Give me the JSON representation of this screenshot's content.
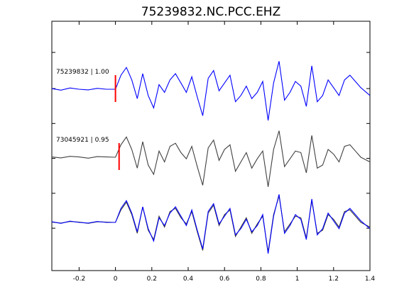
{
  "chart_data": {
    "type": "line",
    "title": "75239832.NC.PCC.EHZ",
    "xlabel": "",
    "ylabel": "",
    "xlim": [
      -0.35,
      1.4
    ],
    "xticks": [
      -0.2,
      0,
      0.2,
      0.4,
      0.6,
      0.8,
      1,
      1.2,
      1.4
    ],
    "xtick_labels": [
      "-0.2",
      "0",
      "0.2",
      "0.4",
      "0.6",
      "0.8",
      "1",
      "1.2",
      "1.4"
    ],
    "grid": false,
    "colors": {
      "primary": "#0000ff",
      "secondary": "#404040",
      "pick": "#ff0000",
      "axes": "#000000"
    },
    "traces": [
      {
        "label": "75239832 | 1.00",
        "color": "#0000ff",
        "pick_time": 0.0
      },
      {
        "label": "73045921 | 0.95",
        "color": "#404040",
        "pick_time": 0.02
      }
    ],
    "overlay": {
      "series": [
        "75239832",
        "73045921"
      ]
    },
    "series": [
      {
        "id": "75239832",
        "x": [
          -0.35,
          -0.3,
          -0.25,
          -0.2,
          -0.15,
          -0.1,
          -0.05,
          0,
          0.03,
          0.06,
          0.09,
          0.12,
          0.15,
          0.18,
          0.21,
          0.24,
          0.27,
          0.3,
          0.33,
          0.36,
          0.39,
          0.42,
          0.45,
          0.48,
          0.51,
          0.54,
          0.57,
          0.6,
          0.63,
          0.66,
          0.69,
          0.72,
          0.75,
          0.78,
          0.81,
          0.84,
          0.87,
          0.9,
          0.93,
          0.96,
          0.99,
          1.02,
          1.05,
          1.08,
          1.11,
          1.14,
          1.17,
          1.2,
          1.23,
          1.26,
          1.29,
          1.32,
          1.35,
          1.4
        ],
        "y": [
          0.02,
          -0.03,
          0.04,
          0.0,
          -0.02,
          0.03,
          0.0,
          0.0,
          0.45,
          0.7,
          0.3,
          -0.3,
          0.5,
          -0.2,
          -0.6,
          0.15,
          -0.1,
          0.3,
          0.5,
          0.2,
          -0.1,
          0.4,
          -0.25,
          -0.85,
          0.35,
          0.6,
          -0.05,
          0.2,
          0.45,
          -0.4,
          -0.2,
          0.1,
          -0.3,
          -0.1,
          0.25,
          -1.0,
          0.2,
          0.9,
          -0.35,
          -0.1,
          0.25,
          0.1,
          -0.55,
          0.75,
          -0.4,
          -0.2,
          0.3,
          0.05,
          -0.2,
          0.3,
          0.45,
          0.25,
          0.05,
          -0.2
        ]
      },
      {
        "id": "73045921",
        "x": [
          -0.35,
          -0.3,
          -0.25,
          -0.2,
          -0.15,
          -0.1,
          -0.05,
          0,
          0.03,
          0.06,
          0.09,
          0.12,
          0.15,
          0.18,
          0.21,
          0.24,
          0.27,
          0.3,
          0.33,
          0.36,
          0.39,
          0.42,
          0.45,
          0.48,
          0.51,
          0.54,
          0.57,
          0.6,
          0.63,
          0.66,
          0.69,
          0.72,
          0.75,
          0.78,
          0.81,
          0.84,
          0.87,
          0.9,
          0.93,
          0.96,
          0.99,
          1.02,
          1.05,
          1.08,
          1.11,
          1.14,
          1.17,
          1.2,
          1.23,
          1.26,
          1.29,
          1.32,
          1.35,
          1.4
        ],
        "y": [
          0.01,
          -0.02,
          0.03,
          0.01,
          -0.03,
          0.02,
          0.01,
          0.0,
          0.4,
          0.65,
          0.25,
          -0.35,
          0.5,
          -0.25,
          -0.55,
          0.2,
          -0.15,
          0.35,
          0.45,
          0.15,
          -0.05,
          0.35,
          -0.3,
          -0.9,
          0.3,
          0.55,
          -0.1,
          0.25,
          0.4,
          -0.45,
          -0.15,
          0.15,
          -0.35,
          -0.05,
          0.2,
          -0.95,
          0.25,
          0.85,
          -0.3,
          -0.05,
          0.2,
          0.15,
          -0.5,
          0.7,
          -0.35,
          -0.25,
          0.25,
          0.1,
          -0.15,
          0.35,
          0.4,
          0.2,
          0.0,
          -0.15
        ]
      }
    ]
  }
}
